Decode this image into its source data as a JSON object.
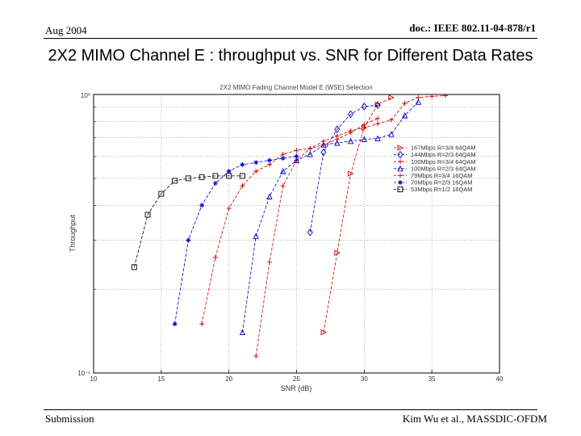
{
  "header": {
    "date": "Aug 2004",
    "doc_id": "doc.: IEEE 802.11-04-878/r1"
  },
  "slide_title": "2X2 MIMO Channel E : throughput vs. SNR for Different Data Rates",
  "footer": {
    "left": "Submission",
    "right": "Kim Wu et al., MASSDIC-OFDM"
  },
  "colors": {
    "red": "#cc0000",
    "blue": "#0000cc",
    "black": "#000000"
  },
  "chart_data": {
    "type": "line",
    "title": "2X2 MIMO Fading Channel Model E (WSE) Selection",
    "xlabel": "SNR (dB)",
    "ylabel": "Throughput",
    "xlim": [
      10,
      40
    ],
    "x_ticks": [
      10,
      15,
      20,
      25,
      30,
      35,
      40
    ],
    "ylim_log": [
      -1,
      0
    ],
    "y_tick_labels": [
      "10⁰",
      "10⁻¹"
    ],
    "grid": true,
    "legend_position": "right",
    "series": [
      {
        "name": "167Mbps R=3/4 64QAM",
        "color": "#cc0000",
        "marker": "tri-right",
        "x": [
          27,
          28,
          29,
          30,
          31,
          32
        ],
        "y": [
          0.14,
          0.27,
          0.52,
          0.76,
          0.92,
          0.975
        ]
      },
      {
        "name": "144Mbps R=2/3 64QAM",
        "color": "#0000cc",
        "marker": "diamond",
        "x": [
          26,
          27,
          28,
          29,
          30,
          31
        ],
        "y": [
          0.32,
          0.62,
          0.75,
          0.85,
          0.905,
          0.915
        ]
      },
      {
        "name": "100Mbps R=3/4 64QAM",
        "color": "#cc0000",
        "marker": "plus",
        "x": [
          22,
          23,
          24,
          25,
          26,
          27,
          28,
          29,
          30,
          31,
          32,
          33,
          34,
          35,
          36
        ],
        "y": [
          0.115,
          0.25,
          0.47,
          0.58,
          0.64,
          0.68,
          0.71,
          0.74,
          0.76,
          0.785,
          0.81,
          0.93,
          0.975,
          0.985,
          0.99
        ]
      },
      {
        "name": "100Mbps R=2/3 64QAM",
        "color": "#0000cc",
        "marker": "triangle",
        "x": [
          21,
          22,
          23,
          24,
          25,
          26,
          27,
          28,
          29,
          30,
          31,
          32,
          33,
          34
        ],
        "y": [
          0.14,
          0.31,
          0.43,
          0.53,
          0.58,
          0.61,
          0.66,
          0.67,
          0.68,
          0.69,
          0.695,
          0.72,
          0.84,
          0.94
        ]
      },
      {
        "name": "79Mbps R=3/4 16QAM",
        "color": "#cc0000",
        "marker": "plus",
        "x": [
          18,
          19,
          20,
          21,
          22,
          23,
          24,
          25,
          26,
          27,
          28,
          29,
          30,
          31
        ],
        "y": [
          0.15,
          0.26,
          0.39,
          0.47,
          0.53,
          0.56,
          0.61,
          0.63,
          0.64,
          0.66,
          0.69,
          0.73,
          0.78,
          0.82
        ]
      },
      {
        "name": "70Mbps R=2/3 16QAM",
        "color": "#0000cc",
        "marker": "star",
        "x": [
          16,
          17,
          18,
          19,
          20,
          21,
          22,
          23,
          24,
          25
        ],
        "y": [
          0.15,
          0.3,
          0.4,
          0.48,
          0.53,
          0.56,
          0.57,
          0.58,
          0.59,
          0.6
        ]
      },
      {
        "name": "53Mbps R=1/2 16QAM",
        "color": "#000000",
        "marker": "square",
        "x": [
          13,
          14,
          15,
          16,
          17,
          18,
          19,
          20,
          21
        ],
        "y": [
          0.24,
          0.37,
          0.44,
          0.49,
          0.5,
          0.505,
          0.51,
          0.51,
          0.51
        ]
      }
    ]
  }
}
